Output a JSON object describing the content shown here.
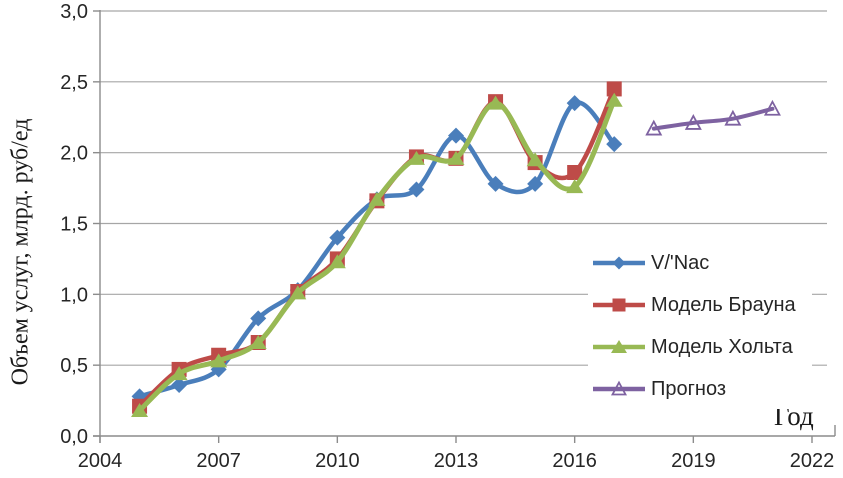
{
  "chart_data": {
    "type": "line",
    "title": "",
    "xlabel": "Год",
    "ylabel": "Объем услуг, млрд. руб/ед",
    "xlim": [
      2004,
      2022
    ],
    "ylim": [
      0,
      3
    ],
    "x_ticks": [
      2004,
      2007,
      2010,
      2013,
      2016,
      2019,
      2022
    ],
    "y_tick_labels": [
      "0,0",
      "0,5",
      "1,0",
      "1,5",
      "2,0",
      "2,5",
      "3,0"
    ],
    "grid": true,
    "legend_position": "inside-right",
    "colors": {
      "grid": "#A6A6A6",
      "axis": "#8C8C8C",
      "tick_text": "#262626",
      "title_text": "#1a1a1a"
    },
    "series": [
      {
        "name": "V/'Nac",
        "color": "#4A7EBB",
        "marker": "diamond",
        "line_width": 4.5,
        "x": [
          2005,
          2006,
          2007,
          2008,
          2009,
          2010,
          2011,
          2012,
          2013,
          2014,
          2015,
          2016,
          2017
        ],
        "values": [
          0.28,
          0.36,
          0.47,
          0.83,
          1.03,
          1.4,
          1.67,
          1.74,
          2.12,
          1.78,
          1.78,
          2.35,
          2.06
        ]
      },
      {
        "name": "Модель Брауна",
        "color": "#BE4B48",
        "marker": "square",
        "line_width": 4.5,
        "x": [
          2005,
          2006,
          2007,
          2008,
          2009,
          2010,
          2011,
          2012,
          2013,
          2014,
          2015,
          2016,
          2017
        ],
        "values": [
          0.21,
          0.47,
          0.57,
          0.66,
          1.02,
          1.25,
          1.66,
          1.97,
          1.96,
          2.36,
          1.93,
          1.86,
          2.45
        ]
      },
      {
        "name": "Модель Хольта",
        "color": "#98B954",
        "marker": "triangle",
        "line_width": 5,
        "x": [
          2005,
          2006,
          2007,
          2008,
          2009,
          2010,
          2011,
          2012,
          2013,
          2014,
          2015,
          2016,
          2017
        ],
        "values": [
          0.18,
          0.44,
          0.53,
          0.66,
          1.01,
          1.23,
          1.67,
          1.96,
          1.96,
          2.35,
          1.95,
          1.76,
          2.37
        ]
      },
      {
        "name": "Прогноз",
        "color": "#7E62A1",
        "marker": "triangle-open",
        "line_width": 4,
        "x": [
          2018,
          2019,
          2020,
          2021
        ],
        "values": [
          2.17,
          2.21,
          2.24,
          2.31
        ]
      }
    ]
  }
}
